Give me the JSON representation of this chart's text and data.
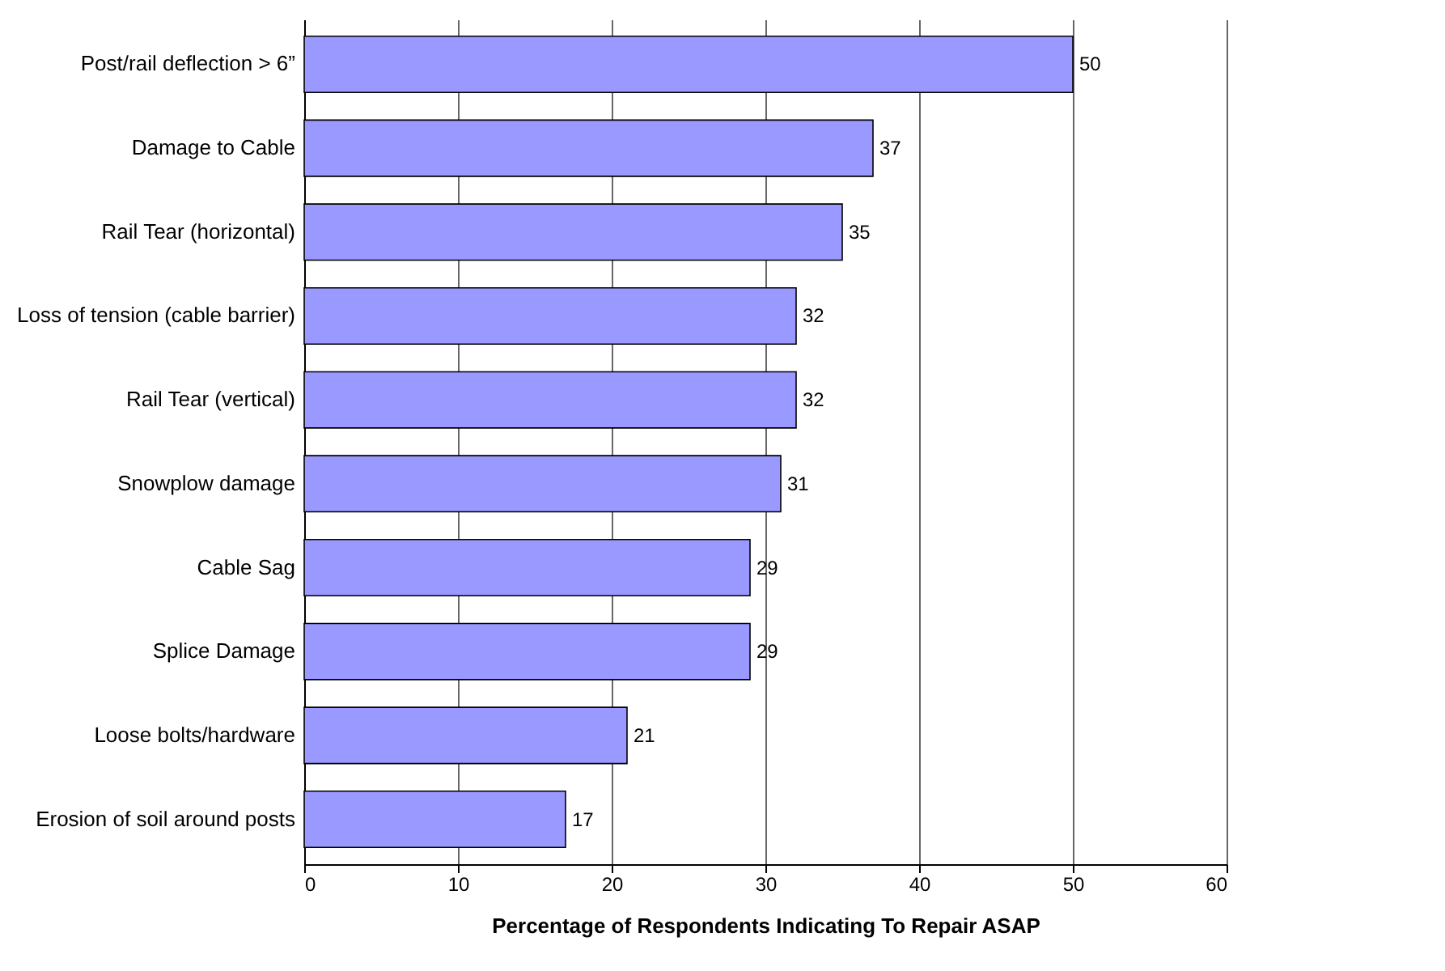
{
  "chart_data": {
    "type": "bar",
    "orientation": "horizontal",
    "xlabel": "Percentage of Respondents Indicating To Repair ASAP",
    "categories": [
      "Post/rail deflection > 6”",
      "Damage to Cable",
      "Rail Tear (horizontal)",
      "Loss of tension (cable barrier)",
      "Rail Tear (vertical)",
      "Snowplow damage",
      "Cable Sag",
      "Splice Damage",
      "Loose bolts/hardware",
      "Erosion of soil around posts"
    ],
    "values": [
      50,
      37,
      35,
      32,
      32,
      31,
      29,
      29,
      21,
      17
    ],
    "color": "#9999ff",
    "xlim": [
      0,
      60
    ],
    "xticks": [
      0,
      10,
      20,
      30,
      40,
      50,
      60
    ],
    "grid": "x",
    "data_labels": true
  }
}
